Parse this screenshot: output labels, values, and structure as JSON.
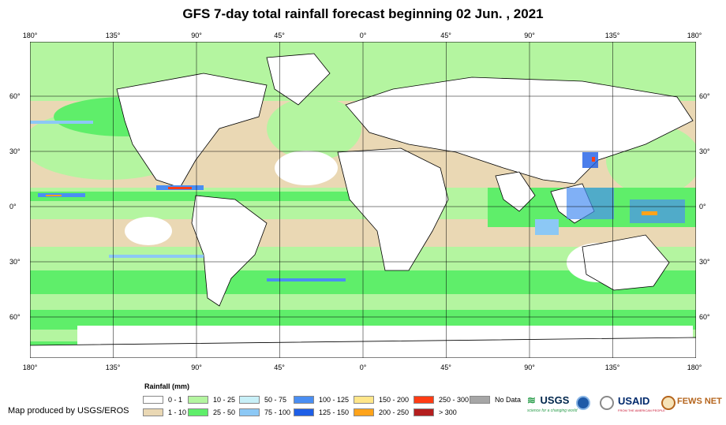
{
  "title": "GFS 7-day total rainfall forecast beginning 02 Jun. , 2021",
  "lon_labels": [
    "180°",
    "135°",
    "90°",
    "45°",
    "0°",
    "45°",
    "90°",
    "135°",
    "180°"
  ],
  "lat_labels": [
    "60°",
    "30°",
    "0°",
    "30°",
    "60°"
  ],
  "legend": {
    "title": "Rainfall (mm)",
    "items": [
      {
        "label": "0 - 1",
        "color": "#ffffff"
      },
      {
        "label": "1 - 10",
        "color": "#ead8b4"
      },
      {
        "label": "10 - 25",
        "color": "#b4f5a0"
      },
      {
        "label": "25 - 50",
        "color": "#5fee6a"
      },
      {
        "label": "50 - 75",
        "color": "#c8f0f8"
      },
      {
        "label": "75 - 100",
        "color": "#8cc8f5"
      },
      {
        "label": "100 - 125",
        "color": "#4a8ef2"
      },
      {
        "label": "125 - 150",
        "color": "#1e5ee6"
      },
      {
        "label": "150 - 200",
        "color": "#ffe68a"
      },
      {
        "label": "200 - 250",
        "color": "#ffa31a"
      },
      {
        "label": "250 - 300",
        "color": "#ff3c14"
      },
      {
        "label": "> 300",
        "color": "#b41e1e"
      },
      {
        "label": "No Data",
        "color": "#a6a6a6"
      }
    ]
  },
  "credit": "Map produced by USGS/EROS",
  "logos": {
    "usgs": "USGS",
    "usgs_tagline": "science for a changing world",
    "usaid": "USAID",
    "usaid_tagline": "FROM THE AMERICAN PEOPLE",
    "fews": "FEWS NET"
  }
}
